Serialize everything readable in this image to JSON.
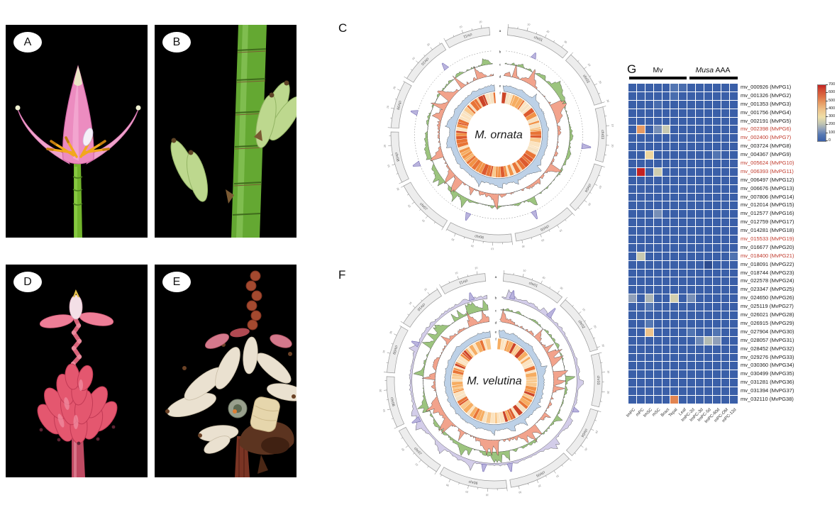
{
  "photos": [
    {
      "label": "A",
      "subject": "Musa ornata pink flower with green stalk"
    },
    {
      "label": "B",
      "subject": "Musa ornata green young fruits on stalk"
    },
    {
      "label": "D",
      "subject": "Musa velutina pink fruit bunch and inflorescence"
    },
    {
      "label": "E",
      "subject": "Musa velutina ripe self-peeling fruits"
    }
  ],
  "circos": [
    {
      "label": "C",
      "center_label": "M. ornata",
      "chromosomes": [
        "chr01",
        "chr02",
        "chr03",
        "chr04",
        "chr05",
        "chr06",
        "chr07",
        "chr08",
        "chr09",
        "chr10",
        "chr11"
      ],
      "weights": [
        34,
        30,
        29,
        27,
        33,
        35,
        30,
        27,
        25,
        26,
        24
      ],
      "track_letters": [
        "a",
        "b",
        "c",
        "d",
        "e",
        "f"
      ],
      "seed": 7,
      "b_style": "spikes",
      "spikes": [
        0.055,
        0.265,
        0.43,
        0.56,
        0.7,
        0.8,
        0.905
      ],
      "heat_density": 0.55
    },
    {
      "label": "F",
      "center_label": "M. velutina",
      "chromosomes": [
        "chr01",
        "chr02",
        "chr03",
        "chr04",
        "chr05",
        "chr06",
        "chr07",
        "chr08",
        "chr09",
        "chr10",
        "chr11"
      ],
      "weights": [
        33,
        31,
        28,
        27,
        34,
        36,
        29,
        27,
        25,
        25,
        24
      ],
      "track_letters": [
        "a",
        "b",
        "c",
        "d",
        "e",
        "f"
      ],
      "seed": 23,
      "b_style": "band",
      "spikes": [
        0.02,
        0.1,
        0.3,
        0.47,
        0.52,
        0.68,
        0.83,
        0.97
      ],
      "heat_density": 0.38
    }
  ],
  "circos_style": {
    "ideogram": "#ededed",
    "ideo_border": "#999999",
    "tick": "#777777",
    "chr_label": "#555555",
    "green": "#9cc47e",
    "salmon": "#f2a38c",
    "blue_band": "#bdd1e7",
    "lavender": "#d3cde9",
    "spike": "#b9b3dd",
    "spike_border": "#5d55a8",
    "heat_palette": [
      "#fbe3c0",
      "#f9c98e",
      "#f6ad62",
      "#f19247",
      "#e87436",
      "#dd5b2e",
      "#cc4427",
      "#f6e2c3"
    ]
  },
  "heatmap": {
    "label": "G",
    "groups": [
      {
        "label": "Mv",
        "col_start": 1,
        "col_end": 7
      },
      {
        "label_italic": "Musa",
        "label_rest": " AAA",
        "col_start": 8,
        "col_end": 13
      }
    ],
    "columns": [
      "ImPC",
      "mPC",
      "ImSC",
      "mSC",
      "Bract",
      "Tepal",
      "Leaf",
      "ImPC-2d",
      "ImPC-3d",
      "ImPC-5d",
      "ImPC-60d",
      "mPC-OM",
      "mPC-12d"
    ],
    "rows": [
      {
        "label": "mv_000926 (MvPG1)",
        "red": false
      },
      {
        "label": "mv_001326 (MvPG2)",
        "red": false
      },
      {
        "label": "mv_001353 (MvPG3)",
        "red": false
      },
      {
        "label": "mv_001756 (MvPG4)",
        "red": false
      },
      {
        "label": "mv_002191 (MvPG5)",
        "red": false
      },
      {
        "label": "mv_002398 (MvPG6)",
        "red": true
      },
      {
        "label": "mv_002400 (MvPG7)",
        "red": true
      },
      {
        "label": "mv_003724 (MvPG8)",
        "red": false
      },
      {
        "label": "mv_004367 (MvPG9)",
        "red": false
      },
      {
        "label": "mv_005624 (MvPG10)",
        "red": true
      },
      {
        "label": "mv_006393 (MvPG11)",
        "red": true
      },
      {
        "label": "mv_006497 (MvPG12)",
        "red": false
      },
      {
        "label": "mv_006676 (MvPG13)",
        "red": false
      },
      {
        "label": "mv_007806 (MvPG14)",
        "red": false
      },
      {
        "label": "mv_012014 (MvPG15)",
        "red": false
      },
      {
        "label": "mv_012577 (MvPG16)",
        "red": false
      },
      {
        "label": "mv_012759 (MvPG17)",
        "red": false
      },
      {
        "label": "mv_014281 (MvPG18)",
        "red": false
      },
      {
        "label": "mv_015533 (MvPG19)",
        "red": true
      },
      {
        "label": "mv_016677 (MvPG20)",
        "red": false
      },
      {
        "label": "mv_018400 (MvPG21)",
        "red": true
      },
      {
        "label": "mv_018091 (MvPG22)",
        "red": false
      },
      {
        "label": "mv_018744 (MvPG23)",
        "red": false
      },
      {
        "label": "mv_022578 (MvPG24)",
        "red": false
      },
      {
        "label": "mv_023347 (MvPG25)",
        "red": false
      },
      {
        "label": "mv_024650 (MvPG26)",
        "red": false
      },
      {
        "label": "mv_025119 (MvPG27)",
        "red": false
      },
      {
        "label": "mv_026021 (MvPG28)",
        "red": false
      },
      {
        "label": "mv_026915 (MvPG29)",
        "red": false
      },
      {
        "label": "mv_027904 (MvPG30)",
        "red": false
      },
      {
        "label": "mv_028057 (MvPG31)",
        "red": false
      },
      {
        "label": "mv_028452 (MvPG32)",
        "red": false
      },
      {
        "label": "mv_029276 (MvPG33)",
        "red": false
      },
      {
        "label": "mv_030360 (MvPG34)",
        "red": false
      },
      {
        "label": "mv_030499 (MvPG35)",
        "red": false
      },
      {
        "label": "mv_031281 (MvPG36)",
        "red": false
      },
      {
        "label": "mv_031394 (MvPG37)",
        "red": false
      },
      {
        "label": "mv_032110 (MvPG38)",
        "red": false
      }
    ],
    "default_value": 0,
    "special_cells": [
      {
        "r": 1,
        "c": 6,
        "v": 70
      },
      {
        "r": 1,
        "c": 7,
        "v": 45
      },
      {
        "r": 2,
        "c": 6,
        "v": 45
      },
      {
        "r": 3,
        "c": 4,
        "v": 40
      },
      {
        "r": 6,
        "c": 2,
        "v": 480
      },
      {
        "r": 6,
        "c": 4,
        "v": 120
      },
      {
        "r": 6,
        "c": 5,
        "v": 230
      },
      {
        "r": 9,
        "c": 3,
        "v": 330
      },
      {
        "r": 9,
        "c": 11,
        "v": 70
      },
      {
        "r": 11,
        "c": 2,
        "v": 700
      },
      {
        "r": 11,
        "c": 4,
        "v": 240
      },
      {
        "r": 16,
        "c": 4,
        "v": 120
      },
      {
        "r": 21,
        "c": 2,
        "v": 230
      },
      {
        "r": 21,
        "c": 13,
        "v": 60
      },
      {
        "r": 22,
        "c": 10,
        "v": 0,
        "color": "#2c4b8f"
      },
      {
        "r": 26,
        "c": 1,
        "v": 150
      },
      {
        "r": 26,
        "c": 3,
        "v": 190
      },
      {
        "r": 26,
        "c": 6,
        "v": 250
      },
      {
        "r": 26,
        "c": 8,
        "v": 120
      },
      {
        "r": 27,
        "c": 3,
        "v": 70
      },
      {
        "r": 29,
        "c": 3,
        "v": 80
      },
      {
        "r": 30,
        "c": 3,
        "v": 390
      },
      {
        "r": 30,
        "c": 8,
        "v": 70
      },
      {
        "r": 30,
        "c": 11,
        "v": 70
      },
      {
        "r": 31,
        "c": 9,
        "v": 110
      },
      {
        "r": 31,
        "c": 10,
        "v": 200
      },
      {
        "r": 31,
        "c": 11,
        "v": 150
      },
      {
        "r": 38,
        "c": 6,
        "v": 520
      }
    ],
    "colorbar": {
      "ticks": [
        700,
        600,
        500,
        400,
        300,
        200,
        100,
        0
      ],
      "max": 700,
      "stops": [
        [
          0,
          "#3a5fa8"
        ],
        [
          80,
          "#5578b3"
        ],
        [
          150,
          "#8f9fb9"
        ],
        [
          220,
          "#c2c6b2"
        ],
        [
          300,
          "#eedfa8"
        ],
        [
          400,
          "#edc088"
        ],
        [
          480,
          "#e69a63"
        ],
        [
          550,
          "#de7346"
        ],
        [
          650,
          "#cf4530"
        ],
        [
          700,
          "#c32222"
        ]
      ]
    },
    "colors": {
      "row_label": "#1a1a1a",
      "row_label_red": "#c0392b"
    }
  }
}
